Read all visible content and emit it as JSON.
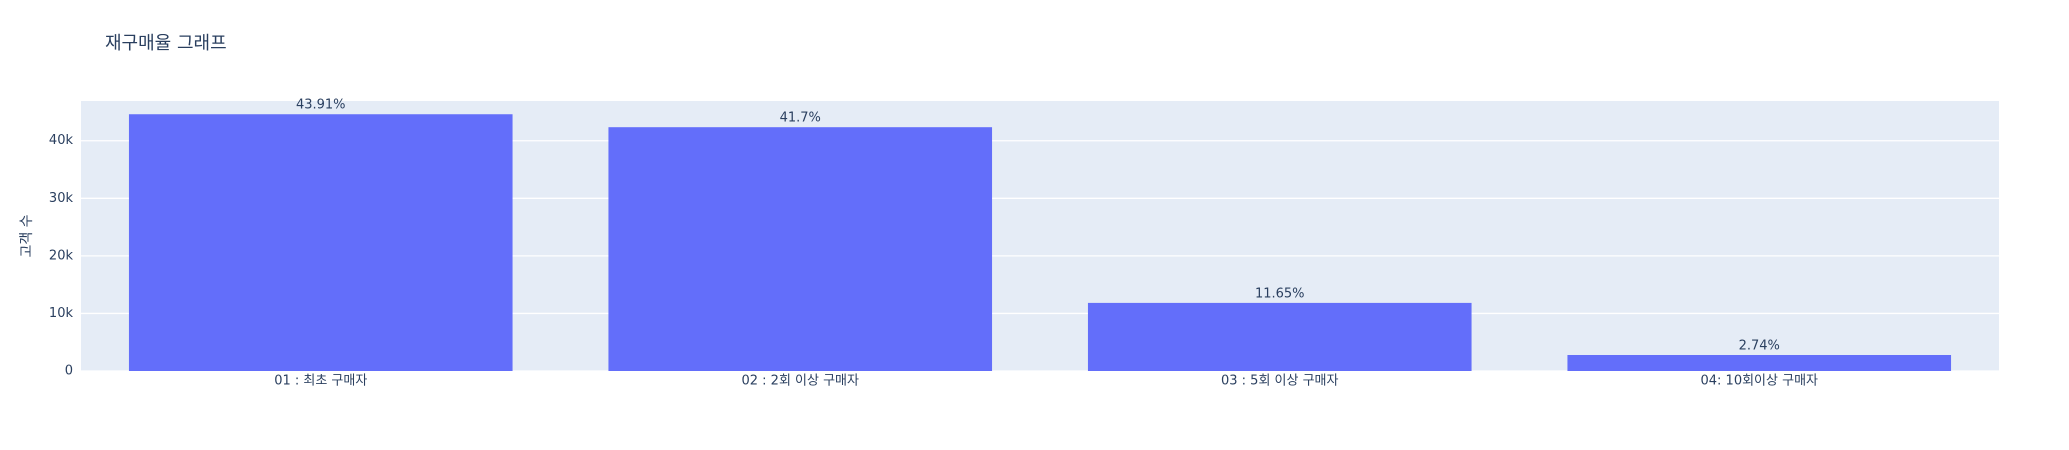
{
  "chart_data": {
    "type": "bar",
    "title": "재구매율 그래프",
    "y_label": "고객 수",
    "categories": [
      "01 : 최초 구매자",
      "02 : 2회 이상 구매자",
      "03 : 5회 이상 구매자",
      "04: 10회이상 구매자"
    ],
    "values": [
      44600,
      42350,
      11830,
      2780
    ],
    "text": [
      "43.91%",
      "41.7%",
      "11.65%",
      "2.74%"
    ],
    "color": "#636efa",
    "ylim": [
      0,
      46900
    ],
    "yticks": [
      0,
      {
        "value": 10000,
        "label": "10k"
      },
      {
        "value": 20000,
        "label": "20k"
      },
      {
        "value": 30000,
        "label": "30k"
      },
      {
        "value": 40000,
        "label": "40k"
      }
    ],
    "grid": true
  }
}
